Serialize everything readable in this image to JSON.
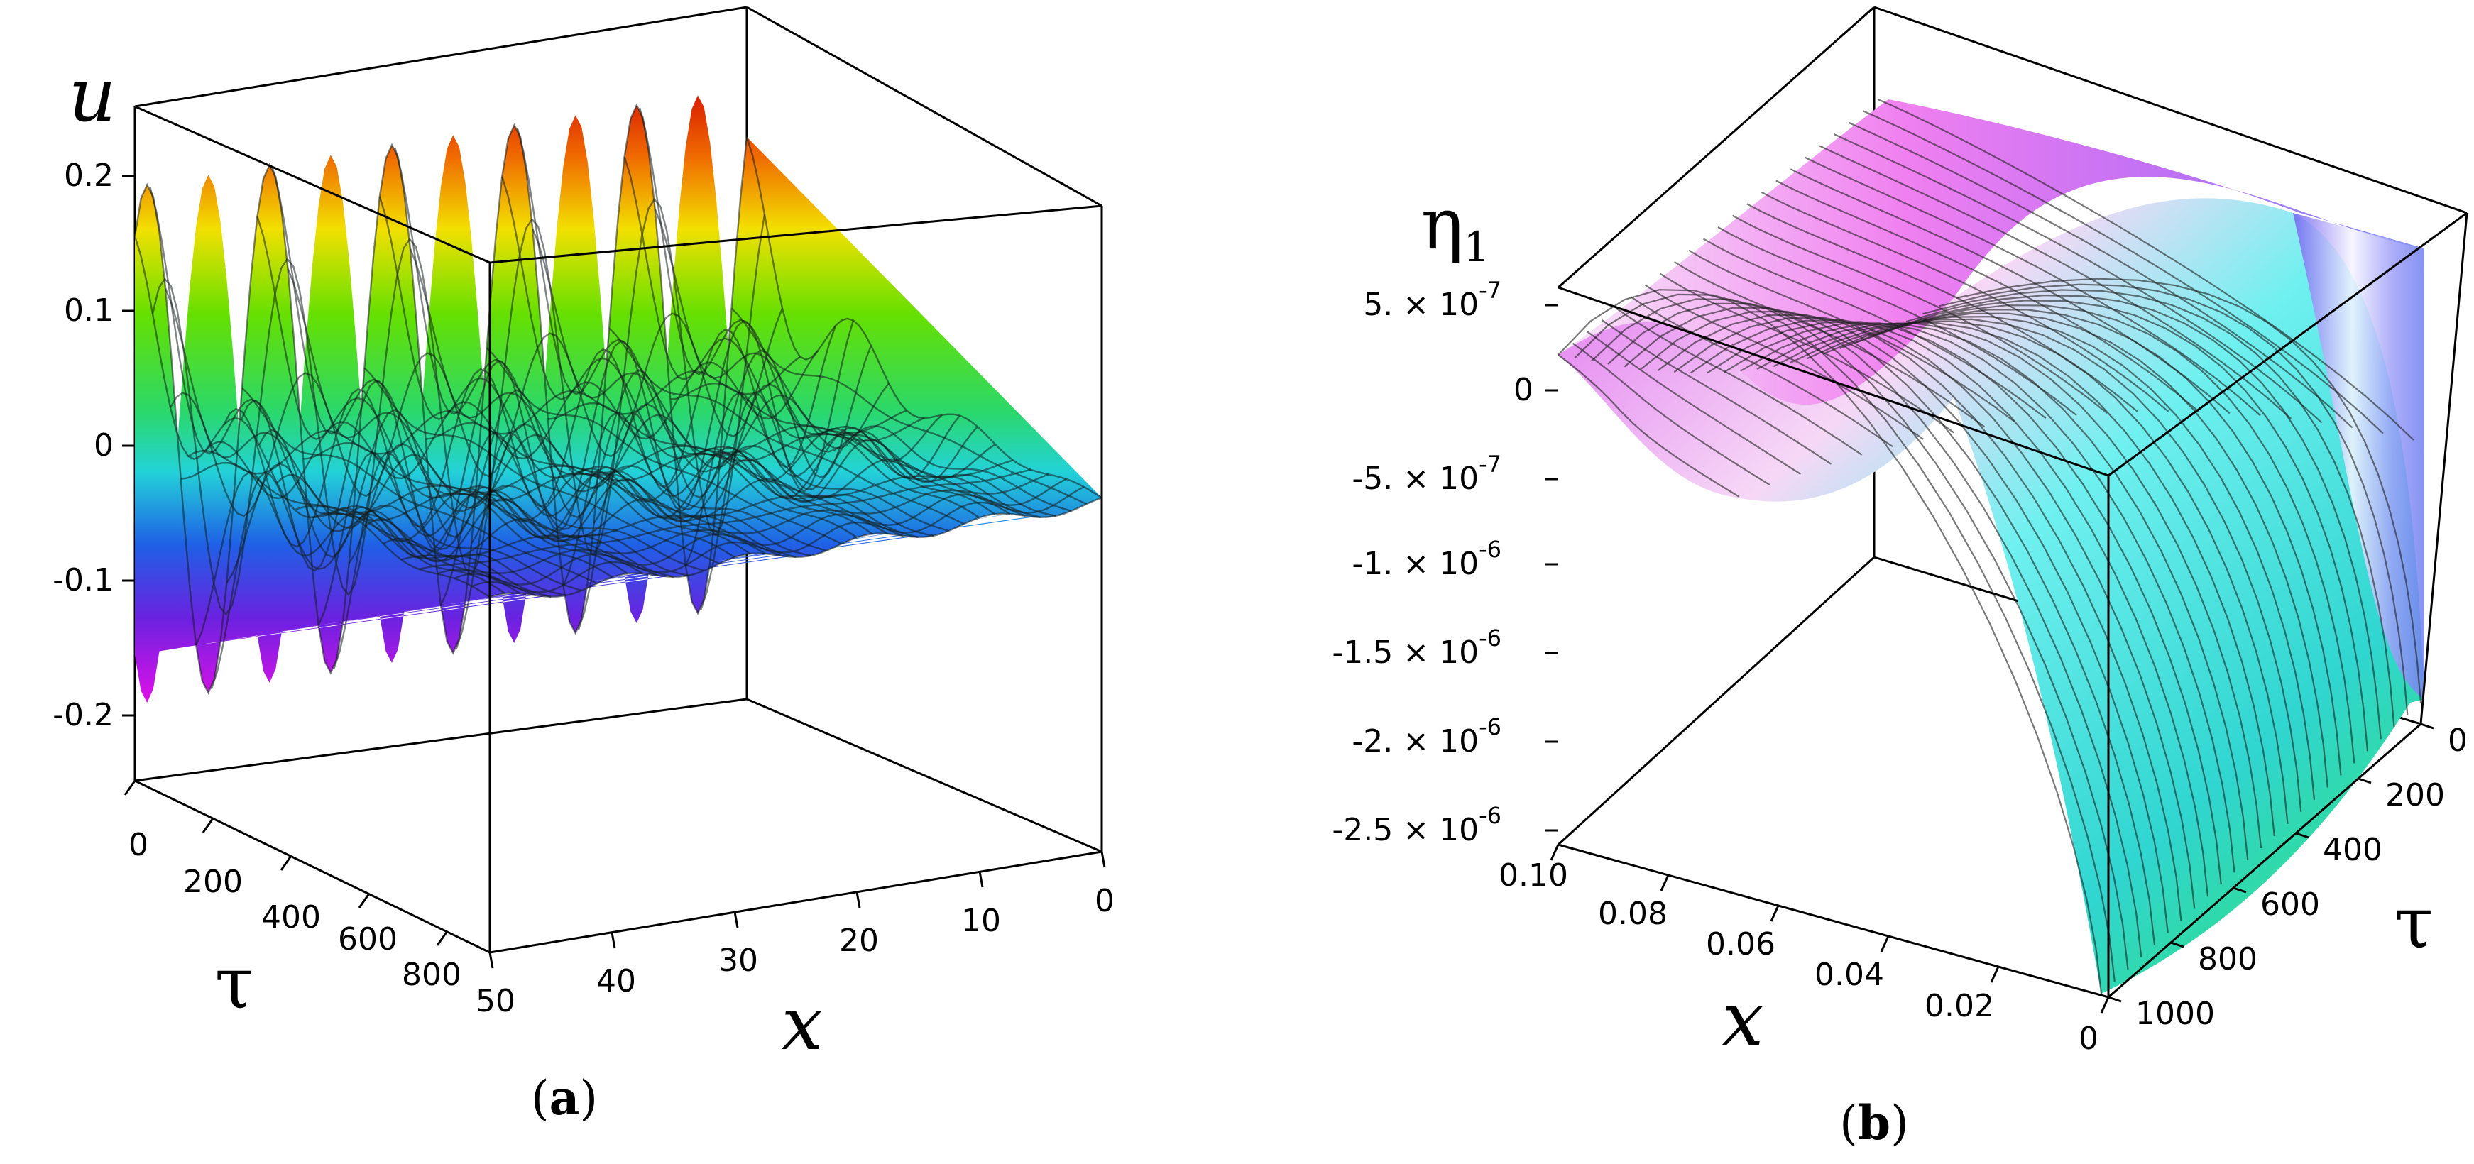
{
  "chart_data": [
    {
      "panel": "(a)",
      "panel_letter": "a",
      "type": "surface3d",
      "title": "",
      "zlabel": "u",
      "xlabel": "x",
      "ylabel": "τ",
      "xlim": [
        0,
        50
      ],
      "ylim": [
        0,
        900
      ],
      "zlim": [
        -0.25,
        0.25
      ],
      "xticks": [
        "50",
        "40",
        "30",
        "20",
        "10",
        "0"
      ],
      "yticks": [
        "0",
        "200",
        "400",
        "600",
        "800"
      ],
      "zticks": [
        "0.2",
        "0.1",
        "0",
        "-0.1",
        "-0.2"
      ],
      "peaks": [
        {
          "x": 49,
          "z_max": 0.24,
          "z_min": -0.25
        },
        {
          "x": 39,
          "z_max": 0.24,
          "z_min": -0.24
        },
        {
          "x": 29,
          "z_max": 0.24,
          "z_min": -0.24
        },
        {
          "x": 19,
          "z_max": 0.24,
          "z_min": -0.23
        },
        {
          "x": 9,
          "z_max": 0.24,
          "z_min": -0.21
        }
      ],
      "colormap": "rainbow"
    },
    {
      "panel": "(b)",
      "panel_letter": "b",
      "type": "surface3d",
      "title": "",
      "zlabel_base": "η",
      "zlabel_sub": "1",
      "xlabel": "x",
      "ylabel": "τ",
      "xlim": [
        0,
        0.1
      ],
      "ylim": [
        0,
        1000
      ],
      "zlim": [
        -2.6e-06,
        6e-07
      ],
      "xticks": [
        "0.10",
        "0.08",
        "0.06",
        "0.04",
        "0.02",
        "0"
      ],
      "yticks": [
        "0",
        "200",
        "400",
        "600",
        "800",
        "1000"
      ],
      "zticks": [
        {
          "base": "5. × 10",
          "exp": "-7"
        },
        {
          "base": "0",
          "exp": ""
        },
        {
          "base": "-5. × 10",
          "exp": "-7"
        },
        {
          "base": "-1. × 10",
          "exp": "-6"
        },
        {
          "base": "-1.5 × 10",
          "exp": "-6"
        },
        {
          "base": "-2. × 10",
          "exp": "-6"
        },
        {
          "base": "-2.5 × 10",
          "exp": "-6"
        }
      ],
      "z_min": -2.5e-06,
      "z_max": 5e-07,
      "colormap": "cyan-magenta"
    }
  ]
}
